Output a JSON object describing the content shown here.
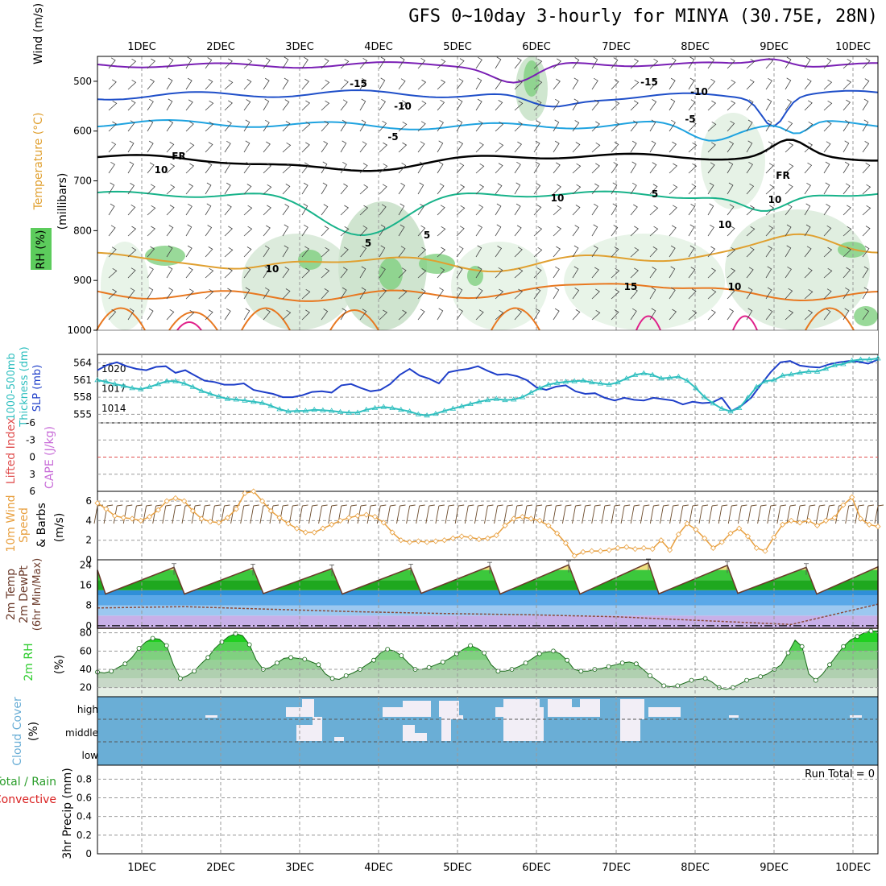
{
  "title": "GFS 0~10day 3-hourly for MINYA (30.75E, 28N)",
  "colors": {
    "temp_m15": "#7a1fb5",
    "temp_m10": "#1f4fc9",
    "temp_m5": "#1fa3e0",
    "temp_fr": "#000000",
    "temp_5": "#18b38a",
    "temp_10": "#e0a030",
    "temp_15": "#e87820",
    "temp_20": "#e0208a",
    "slp": "#1f3fc9",
    "thickness": "#2fbfbf",
    "wind10m": "#e8a040",
    "rh_green": "#2ecc2e",
    "cloud": "#6aaed6",
    "cloud_fill": "#f2eef6",
    "cape": "#c86cd8",
    "lifted": "#e05050",
    "precip_total": "#2a9d2a",
    "precip_conv": "#d92020"
  },
  "chart_data": [
    {
      "panel": "upper-air",
      "type": "area",
      "x": [
        "1DEC",
        "2DEC",
        "3DEC",
        "4DEC",
        "5DEC",
        "6DEC",
        "7DEC",
        "8DEC",
        "9DEC",
        "10DEC"
      ],
      "ylabel": "(millibars)",
      "side_labels": [
        "Wind (m/s)",
        "Temperature (°C)",
        "RH (%)"
      ],
      "y_ticks": [
        "500",
        "600",
        "700",
        "800",
        "900",
        "1000"
      ],
      "ylim": [
        1000,
        450
      ],
      "contour_labels": [
        "-15",
        "-15",
        "-10",
        "-10",
        "-5",
        "-5",
        "FR",
        "FR",
        "10",
        "10",
        "5",
        "5",
        "5",
        "10",
        "10",
        "10",
        "15",
        "10"
      ]
    },
    {
      "panel": "thickness-slp",
      "type": "line",
      "side_labels": [
        "1000-500mb",
        "Thickness (dm)",
        "SLP (mb)"
      ],
      "y_ticks_left": [
        "564",
        "561",
        "558",
        "555"
      ],
      "y_ticks_right": [
        "1020",
        "1017",
        "1014"
      ],
      "thickness_ylim": [
        553.5,
        565.5
      ],
      "slp_ylim": [
        1011.8,
        1022.2
      ],
      "series": [
        {
          "name": "SLP",
          "axis": "right",
          "values": [
            1019.8,
            1020.6,
            1021.0,
            1020.4,
            1020.0,
            1019.8,
            1020.3,
            1020.4,
            1019.4,
            1019.8,
            1019.0,
            1018.2,
            1018.0,
            1017.6,
            1017.6,
            1017.8,
            1016.8,
            1016.5,
            1016.2,
            1015.7,
            1015.7,
            1016.0,
            1016.5,
            1016.6,
            1016.4,
            1017.5,
            1017.7,
            1017.1,
            1016.6,
            1016.8,
            1017.7,
            1019.1,
            1020.0,
            1019.0,
            1018.5,
            1017.8,
            1019.5,
            1019.8,
            1020.0,
            1020.4,
            1019.7,
            1019.1,
            1019.2,
            1018.9,
            1018.3,
            1017.2,
            1016.8,
            1017.3,
            1017.5,
            1016.6,
            1016.2,
            1016.3,
            1015.6,
            1015.2,
            1015.6,
            1015.3,
            1015.2,
            1015.6,
            1015.4,
            1015.2,
            1014.6,
            1015.0,
            1014.8,
            1014.9,
            1015.6,
            1013.6,
            1014.4,
            1015.6,
            1017.6,
            1019.5,
            1021.0,
            1021.2,
            1020.5,
            1020.3,
            1020.2,
            1020.7,
            1021.0,
            1021.2,
            1021.1,
            1020.8,
            1021.4
          ]
        },
        {
          "name": "Thickness",
          "axis": "left",
          "values": [
            561.0,
            560.7,
            560.3,
            560.0,
            559.6,
            559.4,
            559.8,
            560.3,
            560.8,
            560.8,
            560.4,
            559.8,
            559.1,
            558.6,
            558.1,
            557.7,
            557.6,
            557.4,
            557.2,
            557.0,
            556.5,
            555.9,
            555.5,
            555.6,
            555.6,
            555.8,
            555.7,
            555.6,
            555.4,
            555.3,
            555.3,
            555.8,
            556.1,
            556.3,
            556.1,
            555.8,
            555.5,
            555.0,
            554.8,
            555.1,
            555.6,
            556.0,
            556.4,
            556.8,
            557.2,
            557.5,
            557.7,
            557.5,
            557.6,
            558.0,
            558.8,
            559.6,
            560.2,
            560.5,
            560.7,
            560.8,
            560.9,
            560.6,
            560.4,
            560.2,
            560.6,
            561.3,
            561.9,
            562.2,
            561.9,
            561.3,
            561.4,
            561.6,
            560.9,
            559.6,
            558.0,
            556.9,
            556.0,
            555.5,
            556.1,
            557.9,
            559.8,
            560.8,
            561.0,
            561.8,
            562.0,
            562.3,
            562.5,
            562.5,
            563.0,
            563.6,
            563.8,
            564.4,
            564.6,
            564.6,
            564.8
          ]
        }
      ]
    },
    {
      "panel": "stability",
      "type": "line",
      "side_labels": [
        "Lifted Index",
        "CAPE (J/kg)"
      ],
      "y_ticks": [
        "-6",
        "-3",
        "0",
        "3",
        "6"
      ],
      "ylim": [
        6,
        -6
      ],
      "series": [
        {
          "name": "Lifted Index",
          "values": [
            0,
            0,
            0,
            0,
            0,
            0,
            0,
            0,
            0,
            0
          ]
        }
      ]
    },
    {
      "panel": "wind10m",
      "type": "line",
      "side_labels": [
        "10m Wind",
        "Speed",
        "& Barbs",
        "(m/s)"
      ],
      "y_ticks": [
        "6",
        "4",
        "2",
        "0"
      ],
      "ylim": [
        0,
        7
      ],
      "values": [
        5.8,
        5.2,
        4.5,
        4.3,
        4.2,
        4.0,
        4.4,
        5.1,
        6.0,
        6.3,
        6.0,
        5.0,
        4.2,
        3.9,
        3.8,
        4.3,
        5.2,
        6.8,
        7.0,
        6.0,
        5.0,
        4.3,
        3.7,
        3.2,
        2.8,
        2.8,
        3.2,
        3.6,
        4.0,
        4.3,
        4.5,
        4.6,
        4.4,
        3.8,
        2.8,
        2.0,
        1.8,
        1.9,
        1.8,
        1.9,
        2.0,
        2.2,
        2.4,
        2.3,
        2.1,
        2.2,
        2.5,
        3.5,
        4.2,
        4.4,
        4.2,
        4.0,
        3.5,
        2.7,
        1.7,
        0.4,
        0.8,
        0.9,
        0.9,
        1.0,
        1.2,
        1.3,
        1.1,
        1.2,
        1.1,
        2.0,
        1.0,
        2.6,
        3.7,
        3.1,
        2.2,
        1.2,
        1.8,
        2.7,
        3.2,
        2.4,
        1.2,
        0.9,
        2.3,
        3.6,
        4.0,
        3.8,
        4.0,
        3.5,
        4.0,
        4.3,
        5.6,
        6.4,
        4.2,
        3.6,
        3.4
      ]
    },
    {
      "panel": "temperature2m",
      "type": "area",
      "side_labels": [
        "2m Temp",
        "2m DewPt",
        "(6hr Min/Max)"
      ],
      "y_ticks": [
        "24",
        "16",
        "8",
        "0"
      ],
      "ylim": [
        -1,
        26
      ],
      "temp_max": [
        23.0,
        22.8,
        22.5,
        22.8,
        23.5,
        24.0,
        24.8,
        23.8,
        23.0,
        23.2
      ],
      "temp_min": [
        12.5,
        12.7,
        12.5,
        12.8,
        12.5,
        12.5,
        12.6,
        12.8,
        12.5,
        13.0
      ],
      "dewpoint": [
        7.0,
        7.5,
        6.5,
        5.5,
        4.8,
        4.3,
        3.5,
        2.0,
        0.5,
        8.5
      ]
    },
    {
      "panel": "rh2m",
      "type": "area",
      "side_labels": [
        "2m RH",
        "(%)"
      ],
      "y_ticks": [
        "80",
        "60",
        "40",
        "20"
      ],
      "ylim": [
        10,
        85
      ],
      "values": [
        37,
        36,
        38,
        42,
        46,
        53,
        63,
        70,
        74,
        73,
        66,
        45,
        30,
        33,
        38,
        46,
        53,
        63,
        70,
        76,
        79,
        77,
        67,
        50,
        40,
        42,
        47,
        52,
        53,
        52,
        51,
        48,
        45,
        35,
        30,
        29,
        33,
        36,
        40,
        45,
        50,
        58,
        62,
        60,
        55,
        47,
        40,
        40,
        42,
        45,
        48,
        52,
        57,
        62,
        66,
        63,
        58,
        45,
        38,
        38,
        40,
        43,
        47,
        52,
        57,
        59,
        60,
        57,
        50,
        40,
        38,
        38,
        40,
        41,
        43,
        45,
        47,
        48,
        46,
        40,
        33,
        28,
        22,
        21,
        22,
        25,
        28,
        29,
        30,
        26,
        20,
        18,
        20,
        24,
        28,
        30,
        32,
        35,
        40,
        45,
        58,
        72,
        65,
        35,
        28,
        35,
        45,
        55,
        65,
        72,
        76,
        80,
        82,
        82
      ]
    },
    {
      "panel": "cloud",
      "type": "heatmap",
      "side_labels": [
        "Cloud Cover",
        "(%)"
      ],
      "rows": [
        "high",
        "middle",
        "low"
      ],
      "high_cells": [
        0,
        0,
        0,
        0,
        0,
        0,
        0,
        0,
        0,
        0,
        0,
        0,
        0,
        0,
        0,
        0,
        0,
        0,
        0,
        0,
        0,
        0,
        0,
        0,
        0,
        0,
        0,
        0,
        0,
        0,
        0,
        0,
        0,
        0,
        0,
        0,
        0,
        0,
        0,
        0,
        0,
        0,
        0,
        0,
        0,
        0,
        0,
        0,
        0,
        0,
        0,
        0,
        0,
        0,
        0,
        0,
        0,
        0,
        0,
        0,
        0,
        0,
        0,
        0,
        0,
        0,
        0,
        0,
        0,
        0,
        0,
        0,
        0,
        0,
        0,
        0,
        0,
        0,
        0,
        0,
        0
      ],
      "note": "white blocks mark high/middle cloud presence in the cloud panel"
    },
    {
      "panel": "precip",
      "type": "bar",
      "side_labels": [
        "Total / Rain",
        "Convective",
        "3hr Precip (mm)"
      ],
      "y_ticks": [
        "0.8",
        "0.6",
        "0.4",
        "0.2",
        "0"
      ],
      "ylim": [
        0,
        0.95
      ],
      "run_total_label": "Run Total = 0",
      "values": []
    }
  ]
}
